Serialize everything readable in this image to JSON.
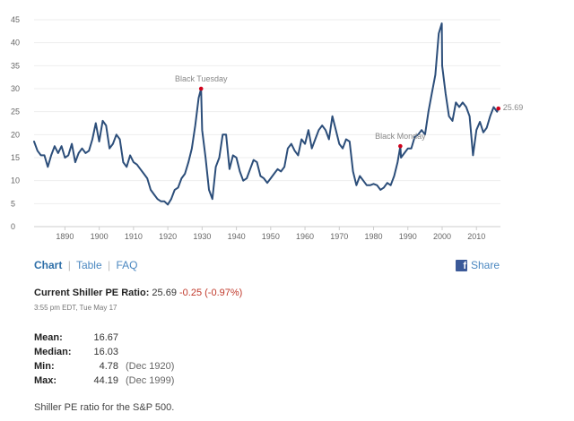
{
  "chart_data": {
    "type": "line",
    "title": "",
    "xlabel": "",
    "ylabel": "",
    "xlim": [
      1881,
      2017
    ],
    "ylim": [
      0,
      45
    ],
    "x_ticks": [
      "1890",
      "1900",
      "1910",
      "1920",
      "1930",
      "1940",
      "1950",
      "1960",
      "1970",
      "1980",
      "1990",
      "2000",
      "2010"
    ],
    "y_ticks": [
      "0",
      "5",
      "10",
      "15",
      "20",
      "25",
      "30",
      "35",
      "40",
      "45"
    ],
    "grid": "horizontal",
    "line_color": "#2c4e7a",
    "marker_color": "#d0021b",
    "series": [
      {
        "x": [
          1881,
          1882,
          1883,
          1884,
          1885,
          1886,
          1887,
          1888,
          1889,
          1890,
          1891,
          1892,
          1893,
          1894,
          1895,
          1896,
          1897,
          1898,
          1899,
          1900,
          1901,
          1902,
          1903,
          1904,
          1905,
          1906,
          1907,
          1908,
          1909,
          1910,
          1911,
          1912,
          1913,
          1914,
          1915,
          1916,
          1917,
          1918,
          1919,
          1920,
          1921,
          1922,
          1923,
          1924,
          1925,
          1926,
          1927,
          1928,
          1929,
          1929.7,
          1930,
          1931,
          1932,
          1933,
          1934,
          1935,
          1936,
          1937,
          1938,
          1939,
          1940,
          1941,
          1942,
          1943,
          1944,
          1945,
          1946,
          1947,
          1948,
          1949,
          1950,
          1951,
          1952,
          1953,
          1954,
          1955,
          1956,
          1957,
          1958,
          1959,
          1960,
          1961,
          1962,
          1963,
          1964,
          1965,
          1966,
          1967,
          1968,
          1969,
          1970,
          1971,
          1972,
          1973,
          1974,
          1975,
          1976,
          1977,
          1978,
          1979,
          1980,
          1981,
          1982,
          1983,
          1984,
          1985,
          1986,
          1987,
          1987.8,
          1988,
          1989,
          1990,
          1991,
          1992,
          1993,
          1994,
          1995,
          1996,
          1997,
          1998,
          1999,
          1999.9,
          2000,
          2001,
          2002,
          2003,
          2004,
          2005,
          2006,
          2007,
          2008,
          2009,
          2010,
          2011,
          2012,
          2013,
          2014,
          2015,
          2016,
          2016.4
        ],
        "y": [
          18.5,
          16.5,
          15.5,
          15.5,
          13,
          15.5,
          17.5,
          16,
          17.5,
          15,
          15.5,
          18,
          14,
          16,
          17,
          16,
          16.5,
          19,
          22.5,
          18.5,
          23,
          22,
          17,
          18,
          20,
          19,
          14,
          13,
          15.5,
          14,
          13.5,
          12.5,
          11.5,
          10.5,
          8,
          7,
          6,
          5.5,
          5.5,
          4.8,
          6,
          8,
          8.5,
          10.5,
          11.5,
          14,
          17,
          22,
          28,
          30,
          21,
          15,
          8,
          6,
          13,
          15,
          20,
          20,
          12.5,
          15.5,
          15,
          12,
          10,
          10.5,
          12.5,
          14.5,
          14,
          11,
          10.5,
          9.5,
          10.5,
          11.5,
          12.5,
          12,
          13,
          17,
          18,
          16.5,
          15.5,
          19,
          18,
          21,
          17,
          19,
          21,
          22,
          21,
          19,
          24,
          21,
          18,
          17,
          19,
          18.5,
          12,
          9,
          11,
          10,
          9,
          9,
          9.3,
          9,
          8,
          8.5,
          9.5,
          9,
          11,
          14,
          17.5,
          15,
          16,
          17,
          17,
          19.5,
          20,
          21,
          20,
          25,
          29,
          33,
          42,
          44.2,
          35,
          29,
          24,
          23,
          27,
          26,
          27,
          26,
          24,
          15.5,
          21,
          22.8,
          20.5,
          21.5,
          24,
          26,
          25,
          25.69
        ]
      }
    ],
    "annotations": [
      {
        "x": 1929.7,
        "y": 30,
        "label": "Black Tuesday"
      },
      {
        "x": 1987.8,
        "y": 17.5,
        "label": "Black Monday"
      },
      {
        "x": 2016.4,
        "y": 25.69,
        "label": "25.69"
      }
    ]
  },
  "nav": {
    "chart_label": "Chart",
    "table_label": "Table",
    "faq_label": "FAQ",
    "separator": "|",
    "share_label": "Share",
    "fb_glyph": "f"
  },
  "current": {
    "label": "Current Shiller PE Ratio:",
    "value": "25.69",
    "change": "-0.25 (-0.97%)",
    "timestamp": "3:55 pm EDT, Tue May 17"
  },
  "stats": [
    {
      "key": "Mean:",
      "value": "16.67",
      "date": ""
    },
    {
      "key": "Median:",
      "value": "16.03",
      "date": ""
    },
    {
      "key": "Min:",
      "value": "4.78",
      "date": "(Dec 1920)"
    },
    {
      "key": "Max:",
      "value": "44.19",
      "date": "(Dec 1999)"
    }
  ],
  "description": "Shiller PE ratio for the S&P 500."
}
